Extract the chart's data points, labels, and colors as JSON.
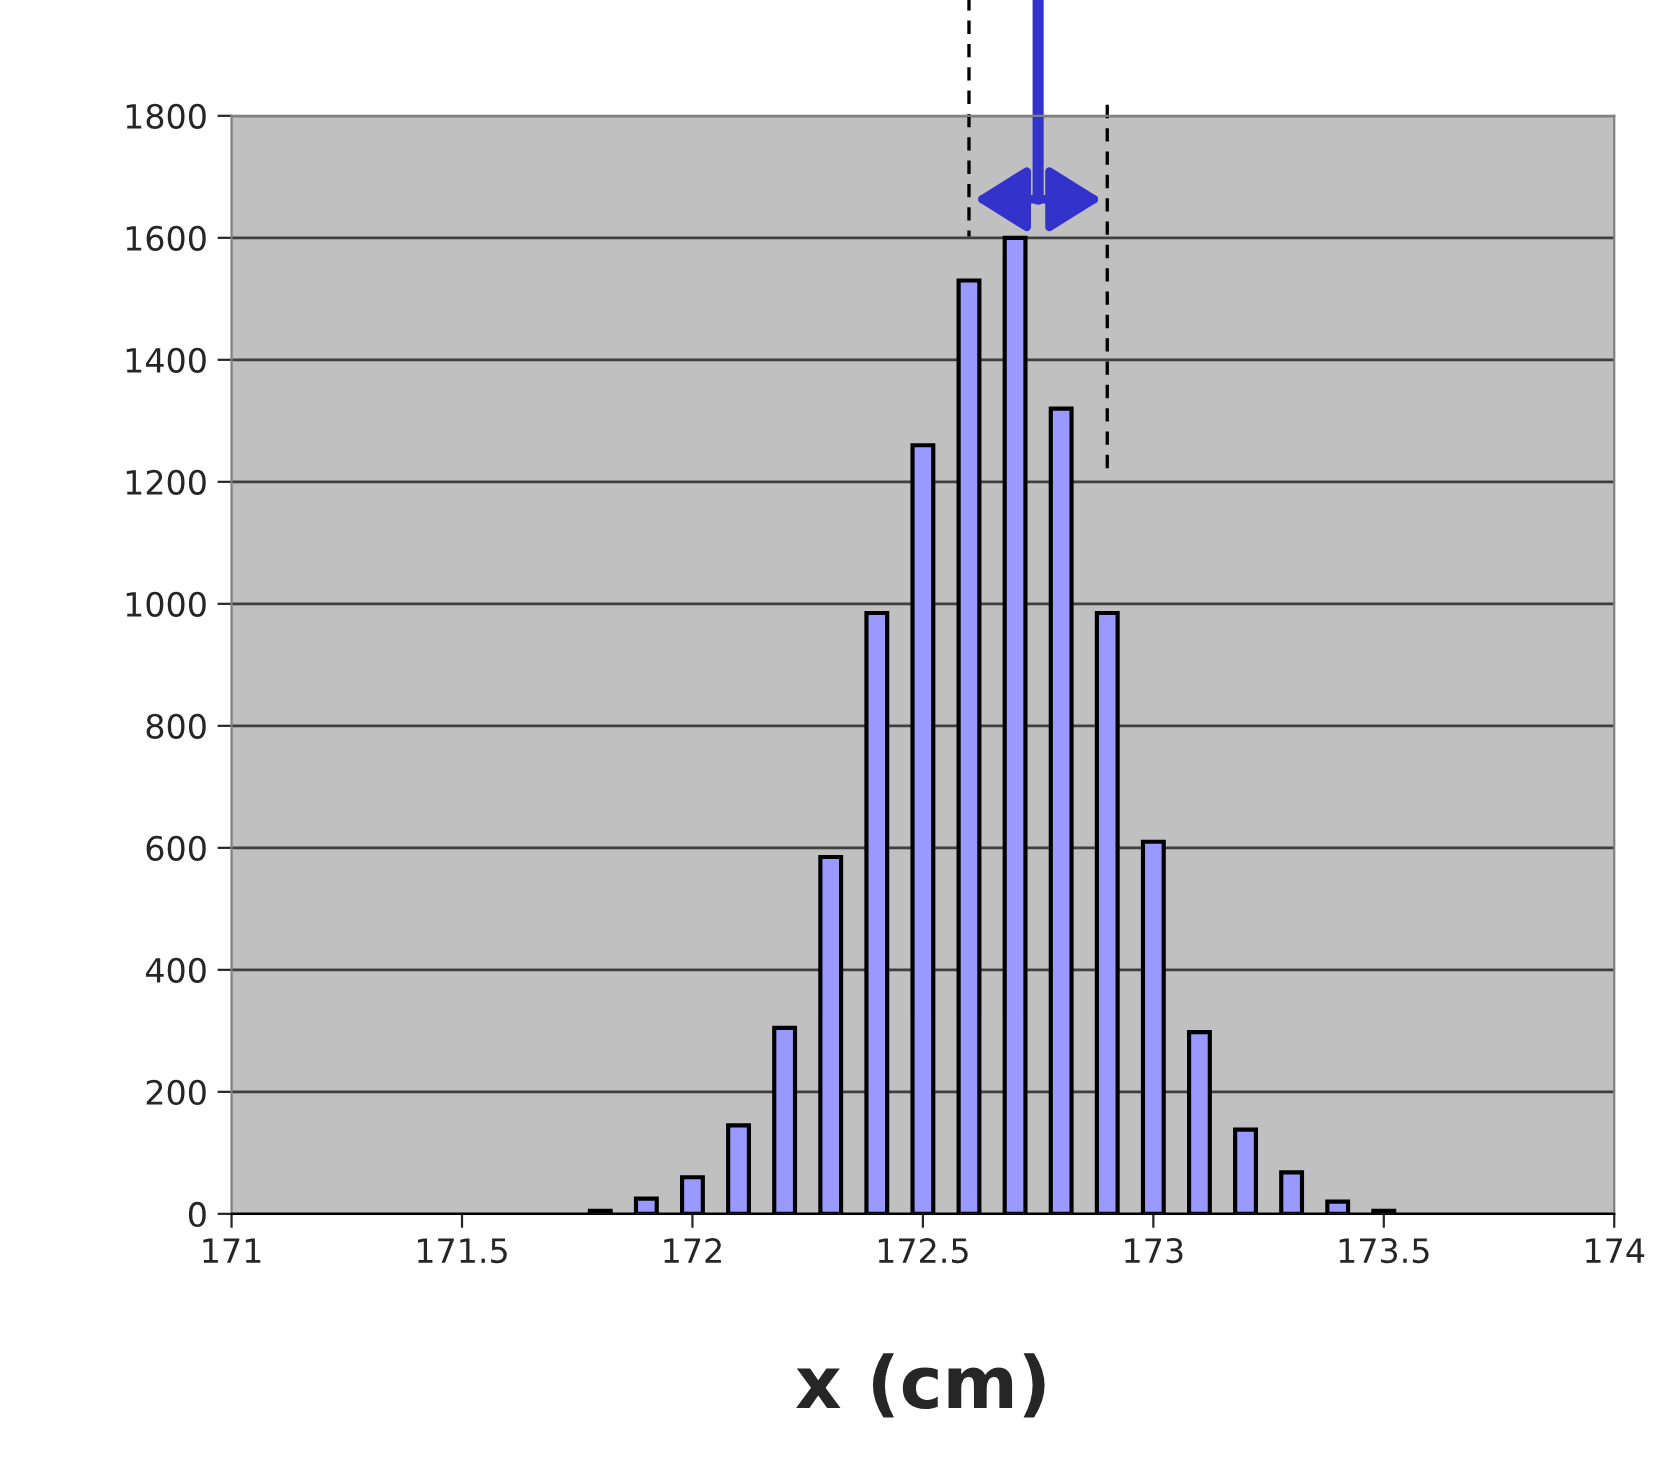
{
  "chart_data": {
    "type": "bar",
    "xlabel": "x (cm)",
    "x": [
      171.8,
      171.9,
      172.0,
      172.1,
      172.2,
      172.3,
      172.4,
      172.5,
      172.6,
      172.7,
      172.8,
      172.9,
      173.0,
      173.1,
      173.2,
      173.3,
      173.4,
      173.5
    ],
    "values": [
      5,
      25,
      60,
      145,
      305,
      585,
      985,
      1260,
      1530,
      1600,
      1320,
      985,
      610,
      298,
      138,
      68,
      20,
      5
    ],
    "color": "#9999ff",
    "xlim": [
      171,
      174
    ],
    "xticks": [
      171,
      171.5,
      172,
      172.5,
      173,
      173.5,
      174
    ],
    "ylim": [
      0,
      1800
    ],
    "yticks": [
      0,
      200,
      400,
      600,
      800,
      1000,
      1200,
      1400,
      1600,
      1800
    ],
    "grid": "y"
  }
}
